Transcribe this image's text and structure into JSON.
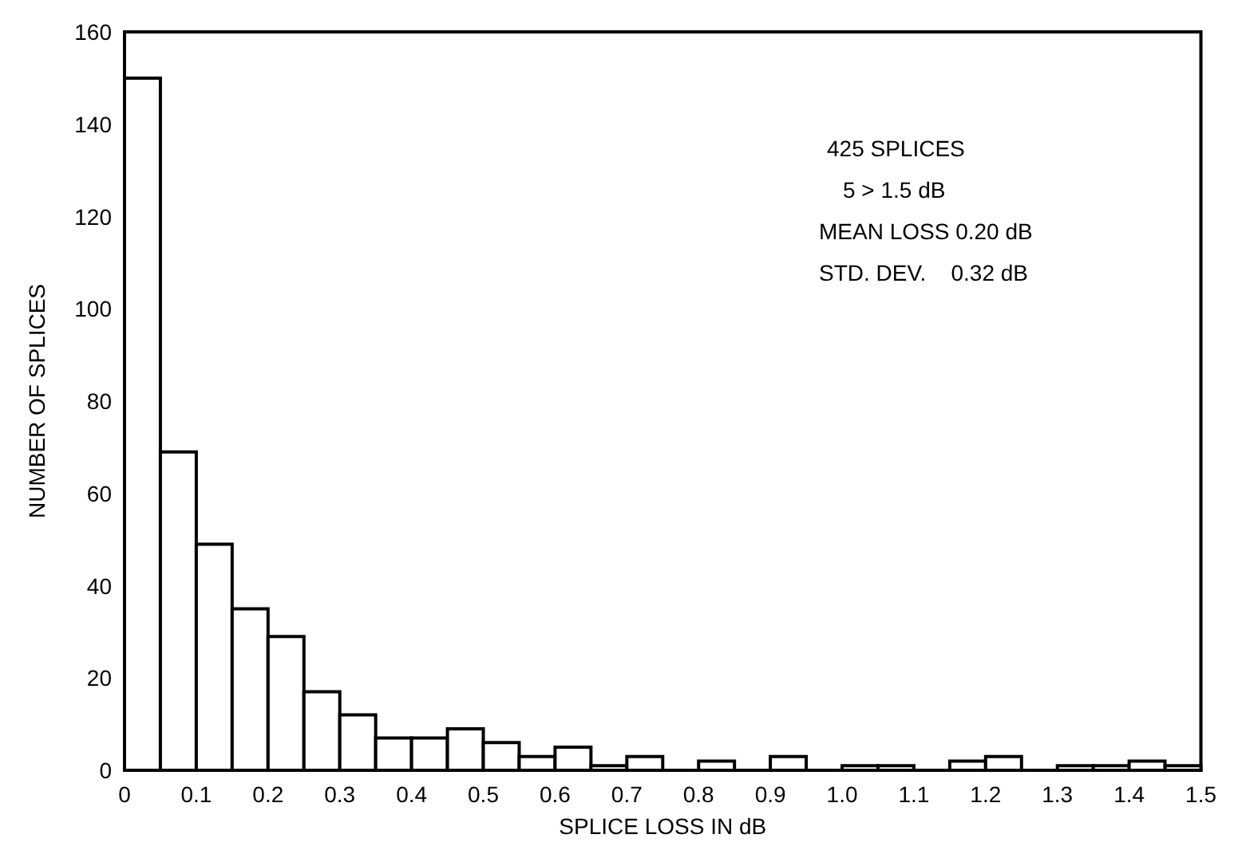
{
  "chart_data": {
    "type": "histogram",
    "xlabel": "SPLICE LOSS IN dB",
    "ylabel": "NUMBER OF SPLICES",
    "bins": [
      0,
      0.05,
      0.1,
      0.15,
      0.2,
      0.25,
      0.3,
      0.35,
      0.4,
      0.45,
      0.5,
      0.55,
      0.6,
      0.65,
      0.7,
      0.75,
      0.8,
      0.85,
      0.9,
      0.95,
      1.0,
      1.05,
      1.1,
      1.15,
      1.2,
      1.25,
      1.3,
      1.35,
      1.4,
      1.45,
      1.5
    ],
    "values": [
      150,
      69,
      49,
      35,
      29,
      17,
      12,
      7,
      7,
      9,
      6,
      3,
      5,
      1,
      3,
      0,
      2,
      0,
      3,
      0,
      1,
      1,
      0,
      2,
      3,
      0,
      1,
      1,
      2,
      1
    ],
    "color": "#ffffff",
    "xlim": [
      0,
      1.5
    ],
    "xticks": [
      0,
      {
        "value": 0.1,
        "label": "0.1"
      },
      {
        "value": 0.2,
        "label": "0.2"
      },
      {
        "value": 0.3,
        "label": "0.3"
      },
      {
        "value": 0.4,
        "label": "0.4"
      },
      {
        "value": 0.5,
        "label": "0.5"
      },
      {
        "value": 0.6,
        "label": "0.6"
      },
      {
        "value": 0.7,
        "label": "0.7"
      },
      {
        "value": 0.8,
        "label": "0.8"
      },
      {
        "value": 0.9,
        "label": "0.9"
      },
      {
        "value": 1.0,
        "label": "1.0"
      },
      {
        "value": 1.1,
        "label": "1.1"
      },
      {
        "value": 1.2,
        "label": "1.2"
      },
      {
        "value": 1.3,
        "label": "1.3"
      },
      {
        "value": 1.4,
        "label": "1.4"
      },
      {
        "value": 1.5,
        "label": "1.5"
      }
    ],
    "ylim": [
      0,
      160
    ],
    "yticks": [
      0,
      20,
      40,
      60,
      80,
      100,
      120,
      140,
      160
    ],
    "annotations": [
      "425 SPLICES",
      "5 > 1.5 dB",
      "MEAN LOSS 0.20 dB",
      "STD. DEV.    0.32 dB"
    ]
  }
}
